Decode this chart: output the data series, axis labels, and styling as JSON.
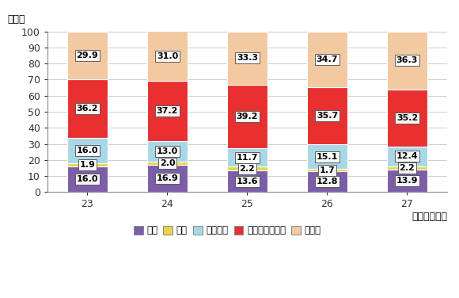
{
  "categories": [
    "23",
    "24",
    "25",
    "26",
    "27"
  ],
  "series": {
    "土地": [
      16.0,
      16.9,
      13.6,
      12.8,
      13.9
    ],
    "家屋": [
      1.9,
      2.0,
      2.2,
      1.7,
      2.2
    ],
    "有価証券": [
      16.0,
      13.0,
      11.7,
      15.1,
      12.4
    ],
    "現金・預貯金等": [
      36.2,
      37.2,
      39.2,
      35.7,
      35.2
    ],
    "その他": [
      29.9,
      31.0,
      33.3,
      34.7,
      36.3
    ]
  },
  "colors": {
    "土地": "#7B5EA7",
    "家屋": "#E8D44D",
    "有価証券": "#A8D8E8",
    "現金・預貯金等": "#E83030",
    "その他": "#F2C9A0"
  },
  "series_order": [
    "土地",
    "家屋",
    "有価証券",
    "現金・預貯金等",
    "その他"
  ],
  "xlabel": "（事務年度）",
  "ylabel": "（％）",
  "ylim": [
    0,
    100
  ],
  "yticks": [
    0,
    10,
    20,
    30,
    40,
    50,
    60,
    70,
    80,
    90,
    100
  ],
  "bar_width": 0.5,
  "background_color": "#FFFFFF",
  "grid_color": "#BBBBBB",
  "label_fontsize": 8.0,
  "legend_fontsize": 8.5,
  "axis_fontsize": 9.0
}
